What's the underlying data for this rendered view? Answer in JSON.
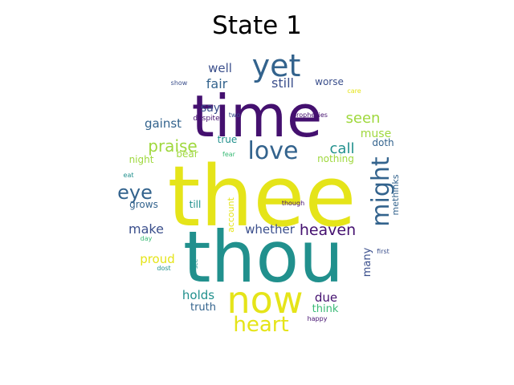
{
  "title": "State 1",
  "palette": {
    "purple": "#44106f",
    "indigo": "#3b4f8c",
    "blue": "#33638d",
    "teal": "#21908d",
    "green": "#3aba76",
    "lime": "#9fd83d",
    "yellow": "#e5e419"
  },
  "words": [
    {
      "text": "thee",
      "color": "yellow"
    },
    {
      "text": "thou",
      "color": "teal"
    },
    {
      "text": "time",
      "color": "purple"
    },
    {
      "text": "now",
      "color": "yellow"
    },
    {
      "text": "yet",
      "color": "blue"
    },
    {
      "text": "love",
      "color": "blue"
    },
    {
      "text": "might",
      "color": "blue"
    },
    {
      "text": "heart",
      "color": "yellow"
    },
    {
      "text": "eye",
      "color": "blue"
    },
    {
      "text": "praise",
      "color": "lime"
    },
    {
      "text": "heaven",
      "color": "purple"
    },
    {
      "text": "seen",
      "color": "lime"
    },
    {
      "text": "call",
      "color": "teal"
    },
    {
      "text": "still",
      "color": "indigo"
    },
    {
      "text": "fair",
      "color": "blue"
    },
    {
      "text": "well",
      "color": "indigo"
    },
    {
      "text": "make",
      "color": "indigo"
    },
    {
      "text": "whether",
      "color": "indigo"
    },
    {
      "text": "gainst",
      "color": "blue"
    },
    {
      "text": "say",
      "color": "indigo"
    },
    {
      "text": "holds",
      "color": "teal"
    },
    {
      "text": "proud",
      "color": "yellow"
    },
    {
      "text": "due",
      "color": "purple"
    },
    {
      "text": "muse",
      "color": "lime"
    },
    {
      "text": "many",
      "color": "indigo"
    },
    {
      "text": "worse",
      "color": "indigo"
    },
    {
      "text": "truth",
      "color": "blue"
    },
    {
      "text": "think",
      "color": "green"
    },
    {
      "text": "grows",
      "color": "blue"
    },
    {
      "text": "till",
      "color": "teal"
    },
    {
      "text": "night",
      "color": "lime"
    },
    {
      "text": "true",
      "color": "teal"
    },
    {
      "text": "bear",
      "color": "lime"
    },
    {
      "text": "nothing",
      "color": "lime"
    },
    {
      "text": "doth",
      "color": "blue"
    },
    {
      "text": "methinks",
      "color": "blue"
    },
    {
      "text": "account",
      "color": "yellow"
    },
    {
      "text": "despite",
      "color": "purple"
    },
    {
      "text": "two",
      "color": "indigo"
    },
    {
      "text": "prophecies",
      "color": "purple"
    },
    {
      "text": "show",
      "color": "indigo"
    },
    {
      "text": "care",
      "color": "yellow"
    },
    {
      "text": "eat",
      "color": "teal"
    },
    {
      "text": "fear",
      "color": "green"
    },
    {
      "text": "though",
      "color": "purple"
    },
    {
      "text": "day",
      "color": "green"
    },
    {
      "text": "dost",
      "color": "teal"
    },
    {
      "text": "see",
      "color": "teal"
    },
    {
      "text": "first",
      "color": "indigo"
    },
    {
      "text": "happy",
      "color": "purple"
    }
  ]
}
